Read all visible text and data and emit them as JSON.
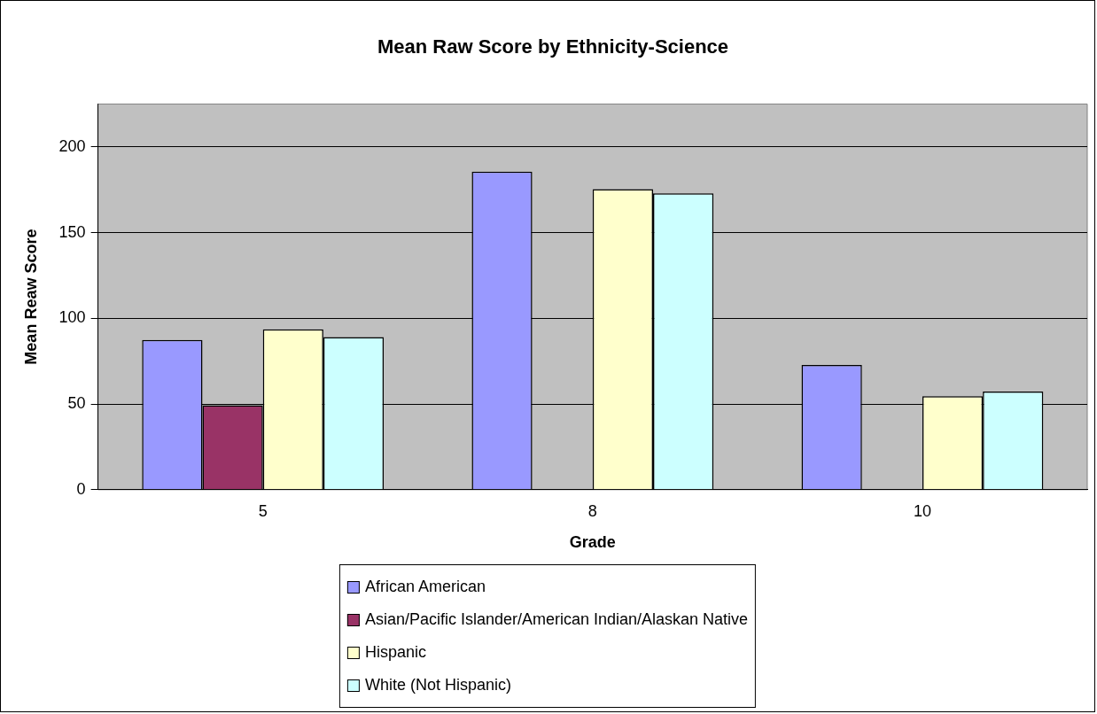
{
  "chart_data": {
    "type": "bar",
    "title": "Mean Raw Score by Ethnicity-Science",
    "xlabel": "Grade",
    "ylabel": "Mean Reaw Score",
    "categories": [
      "5",
      "8",
      "10"
    ],
    "series": [
      {
        "name": "African American",
        "color": "#9999ff",
        "values": [
          87.3,
          185.6,
          72.7
        ]
      },
      {
        "name": "Asian/Pacific Islander/American Indian/Alaskan Native",
        "color": "#993366",
        "values": [
          49.2,
          null,
          null
        ]
      },
      {
        "name": "Hispanic",
        "color": "#ffffcc",
        "values": [
          93.6,
          175.4,
          54.5
        ]
      },
      {
        "name": "White (Not Hispanic)",
        "color": "#ccffff",
        "values": [
          89.0,
          172.9,
          57.2
        ]
      }
    ],
    "ylim": [
      0,
      225
    ],
    "yticks": [
      0,
      50,
      100,
      150,
      200
    ],
    "grid": "y",
    "legend": "bottom"
  }
}
